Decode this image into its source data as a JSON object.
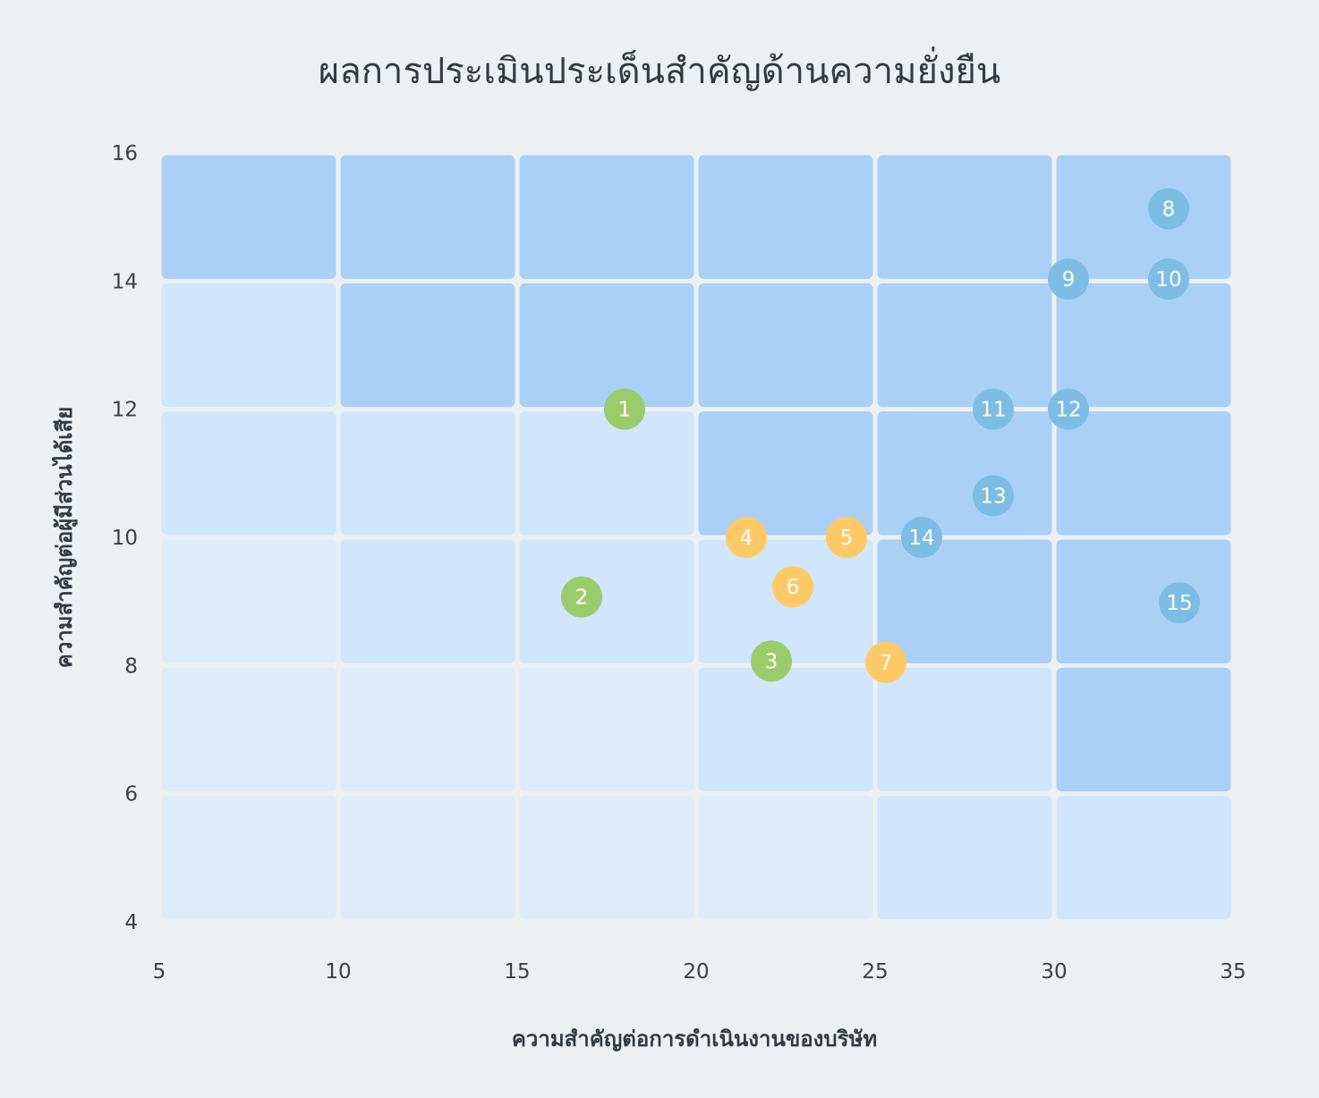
{
  "chart_data": {
    "type": "scatter",
    "title": "ผลการประเมินประเด็นสำคัญด้านความยั่งยืน",
    "xlabel": "ความสำคัญต่อการดำเนินงานของบริษัท",
    "ylabel": "ความสำคัญต่อผู้มีส่วนได้เสีย",
    "xlim": [
      5,
      35
    ],
    "ylim": [
      4,
      16
    ],
    "x_ticks": [
      "5",
      "10",
      "15",
      "20",
      "25",
      "30",
      "35"
    ],
    "y_ticks": [
      "4",
      "6",
      "8",
      "10",
      "12",
      "14",
      "16"
    ],
    "background_grid": {
      "x_edges": [
        5,
        10,
        15,
        20,
        25,
        30,
        35
      ],
      "y_edges": [
        4,
        6,
        8,
        10,
        12,
        14,
        16
      ],
      "levels_bottom_to_top": [
        [
          1,
          1,
          1,
          1,
          2,
          2
        ],
        [
          1,
          1,
          1,
          2,
          2,
          3
        ],
        [
          1,
          2,
          2,
          2,
          3,
          3
        ],
        [
          2,
          2,
          2,
          3,
          3,
          3
        ],
        [
          2,
          3,
          3,
          3,
          3,
          3
        ],
        [
          3,
          3,
          3,
          3,
          3,
          3
        ]
      ],
      "level_colors": {
        "1": "#deebf9",
        "2": "#cfe6fc",
        "3": "#abd0f8"
      }
    },
    "group_colors": {
      "green": "#9ccb6b",
      "orange": "#ffc966",
      "blue": "#7dbde4"
    },
    "points": [
      {
        "label": "1",
        "x": 18.0,
        "y": 12.0,
        "group": "green"
      },
      {
        "label": "2",
        "x": 16.8,
        "y": 9.07,
        "group": "green"
      },
      {
        "label": "3",
        "x": 22.1,
        "y": 8.07,
        "group": "green"
      },
      {
        "label": "4",
        "x": 21.4,
        "y": 10.0,
        "group": "orange"
      },
      {
        "label": "5",
        "x": 24.2,
        "y": 10.0,
        "group": "orange"
      },
      {
        "label": "6",
        "x": 22.7,
        "y": 9.23,
        "group": "orange"
      },
      {
        "label": "7",
        "x": 25.3,
        "y": 8.05,
        "group": "orange"
      },
      {
        "label": "8",
        "x": 33.2,
        "y": 15.13,
        "group": "blue"
      },
      {
        "label": "9",
        "x": 30.4,
        "y": 14.03,
        "group": "blue"
      },
      {
        "label": "10",
        "x": 33.2,
        "y": 14.03,
        "group": "blue"
      },
      {
        "label": "11",
        "x": 28.3,
        "y": 12.0,
        "group": "blue"
      },
      {
        "label": "12",
        "x": 30.4,
        "y": 12.0,
        "group": "blue"
      },
      {
        "label": "13",
        "x": 28.3,
        "y": 10.65,
        "group": "blue"
      },
      {
        "label": "14",
        "x": 26.3,
        "y": 10.0,
        "group": "blue"
      },
      {
        "label": "15",
        "x": 33.5,
        "y": 8.98,
        "group": "blue"
      }
    ]
  }
}
